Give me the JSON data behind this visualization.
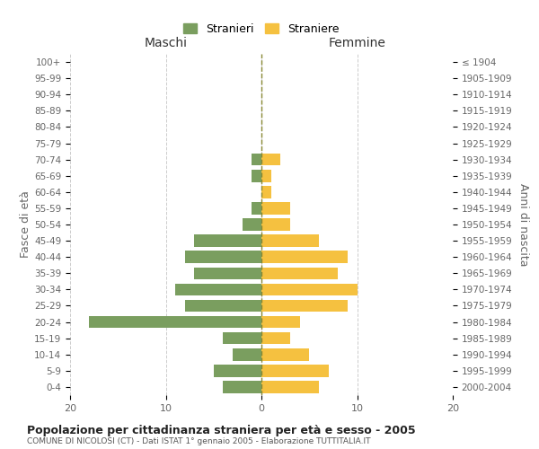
{
  "age_groups": [
    "0-4",
    "5-9",
    "10-14",
    "15-19",
    "20-24",
    "25-29",
    "30-34",
    "35-39",
    "40-44",
    "45-49",
    "50-54",
    "55-59",
    "60-64",
    "65-69",
    "70-74",
    "75-79",
    "80-84",
    "85-89",
    "90-94",
    "95-99",
    "100+"
  ],
  "birth_years": [
    "2000-2004",
    "1995-1999",
    "1990-1994",
    "1985-1989",
    "1980-1984",
    "1975-1979",
    "1970-1974",
    "1965-1969",
    "1960-1964",
    "1955-1959",
    "1950-1954",
    "1945-1949",
    "1940-1944",
    "1935-1939",
    "1930-1934",
    "1925-1929",
    "1920-1924",
    "1915-1919",
    "1910-1914",
    "1905-1909",
    "≤ 1904"
  ],
  "maschi": [
    4,
    5,
    3,
    4,
    18,
    8,
    9,
    7,
    8,
    7,
    2,
    1,
    0,
    1,
    1,
    0,
    0,
    0,
    0,
    0,
    0
  ],
  "femmine": [
    6,
    7,
    5,
    3,
    4,
    9,
    10,
    8,
    9,
    6,
    3,
    3,
    1,
    1,
    2,
    0,
    0,
    0,
    0,
    0,
    0
  ],
  "color_maschi": "#7a9e5f",
  "color_femmine": "#f5c140",
  "title": "Popolazione per cittadinanza straniera per età e sesso - 2005",
  "subtitle": "COMUNE DI NICOLOSI (CT) - Dati ISTAT 1° gennaio 2005 - Elaborazione TUTTITALIA.IT",
  "xlabel_left": "Maschi",
  "xlabel_right": "Femmine",
  "ylabel_left": "Fasce di età",
  "ylabel_right": "Anni di nascita",
  "legend_maschi": "Stranieri",
  "legend_femmine": "Straniere",
  "xlim": 20,
  "bar_height": 0.75,
  "background_color": "#ffffff",
  "grid_color": "#cccccc",
  "text_color": "#666666"
}
